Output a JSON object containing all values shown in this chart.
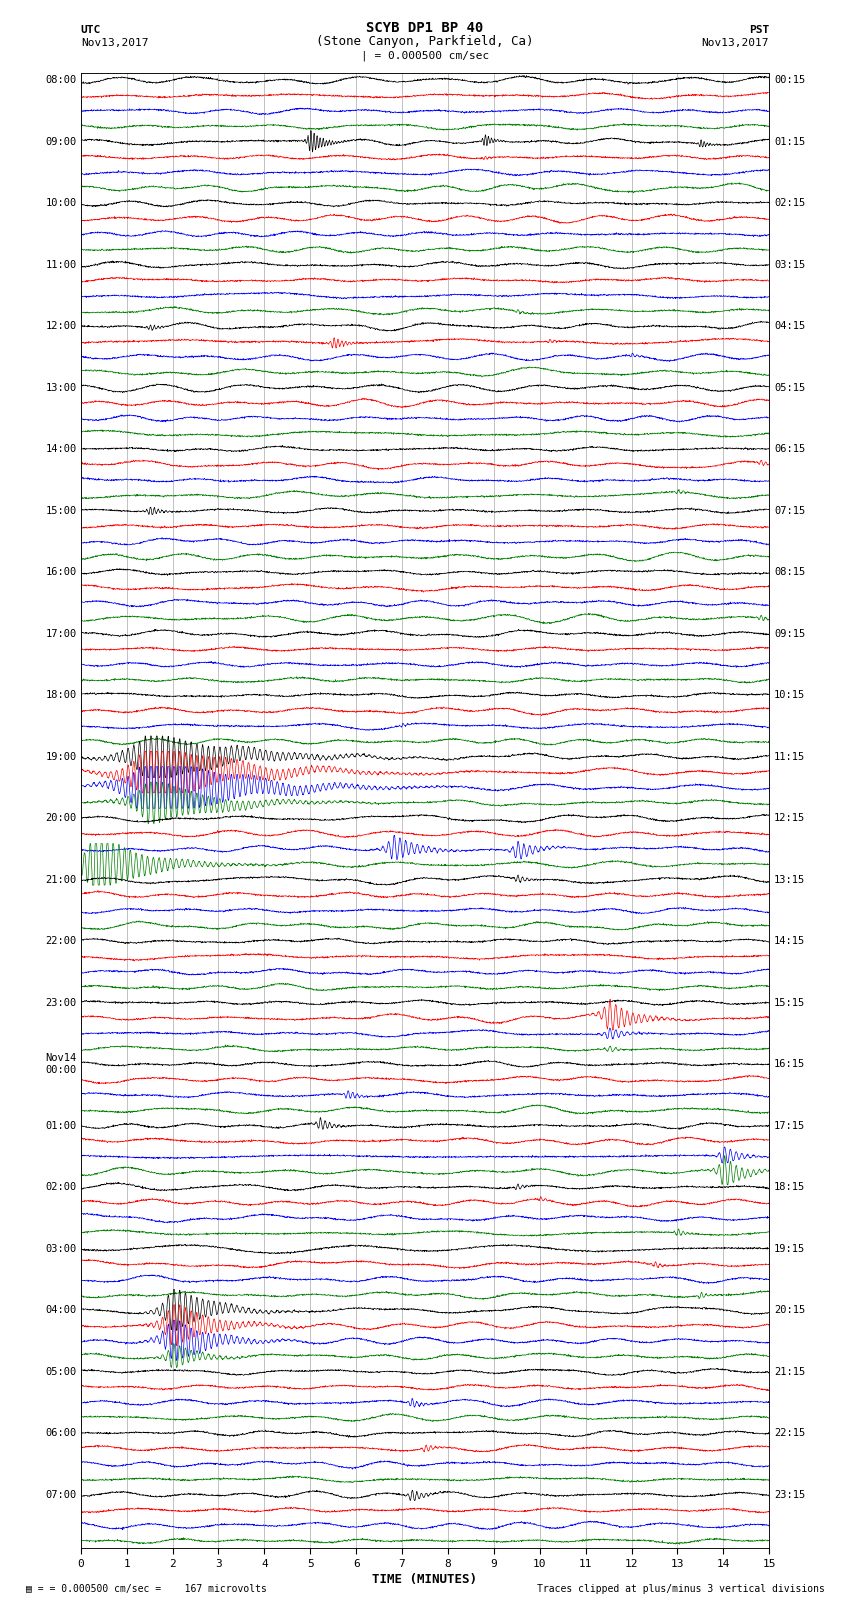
{
  "title_line1": "SCYB DP1 BP 40",
  "title_line2": "(Stone Canyon, Parkfield, Ca)",
  "scale_label": "| = 0.000500 cm/sec",
  "utc_label": "UTC",
  "pst_label": "PST",
  "date_left": "Nov13,2017",
  "date_right": "Nov13,2017",
  "xlabel": "TIME (MINUTES)",
  "footer_left": "= 0.000500 cm/sec =    167 microvolts",
  "footer_right": "Traces clipped at plus/minus 3 vertical divisions",
  "bg_color": "#ffffff",
  "trace_colors": [
    "black",
    "red",
    "blue",
    "green"
  ],
  "grid_color_v": "#aaaaaa",
  "xmin": 0,
  "xmax": 15,
  "xticks": [
    0,
    1,
    2,
    3,
    4,
    5,
    6,
    7,
    8,
    9,
    10,
    11,
    12,
    13,
    14,
    15
  ],
  "figwidth": 8.5,
  "figheight": 16.13,
  "dpi": 100,
  "num_hour_groups": 24,
  "traces_per_group": 4,
  "noise_scale": 0.18,
  "row_labels_left": [
    "08:00",
    "09:00",
    "10:00",
    "11:00",
    "12:00",
    "13:00",
    "14:00",
    "15:00",
    "16:00",
    "17:00",
    "18:00",
    "19:00",
    "20:00",
    "21:00",
    "22:00",
    "23:00",
    "Nov14\n00:00",
    "01:00",
    "02:00",
    "03:00",
    "04:00",
    "05:00",
    "06:00",
    "07:00"
  ],
  "row_labels_right": [
    "00:15",
    "01:15",
    "02:15",
    "03:15",
    "04:15",
    "05:15",
    "06:15",
    "07:15",
    "08:15",
    "09:15",
    "10:15",
    "11:15",
    "12:15",
    "13:15",
    "14:15",
    "15:15",
    "16:15",
    "17:15",
    "18:15",
    "19:15",
    "20:15",
    "21:15",
    "22:15",
    "23:15"
  ],
  "nov14_label": "Nov14",
  "nov14_group": 16,
  "events": [
    {
      "group": 1,
      "trace": 0,
      "minute": 5.0,
      "amp": 1.8,
      "dur": 0.4,
      "freq": 15
    },
    {
      "group": 1,
      "trace": 0,
      "minute": 8.8,
      "amp": 1.0,
      "dur": 0.25,
      "freq": 15
    },
    {
      "group": 1,
      "trace": 0,
      "minute": 13.5,
      "amp": 0.7,
      "dur": 0.2,
      "freq": 15
    },
    {
      "group": 1,
      "trace": 1,
      "minute": 8.8,
      "amp": 0.25,
      "dur": 0.15,
      "freq": 12
    },
    {
      "group": 3,
      "trace": 3,
      "minute": 9.5,
      "amp": 0.3,
      "dur": 0.2,
      "freq": 10
    },
    {
      "group": 4,
      "trace": 0,
      "minute": 1.5,
      "amp": 0.5,
      "dur": 0.25,
      "freq": 12
    },
    {
      "group": 4,
      "trace": 1,
      "minute": 5.5,
      "amp": 0.9,
      "dur": 0.35,
      "freq": 12
    },
    {
      "group": 4,
      "trace": 1,
      "minute": 10.2,
      "amp": 0.35,
      "dur": 0.2,
      "freq": 10
    },
    {
      "group": 4,
      "trace": 2,
      "minute": 12.0,
      "amp": 0.4,
      "dur": 0.2,
      "freq": 10
    },
    {
      "group": 6,
      "trace": 1,
      "minute": 14.8,
      "amp": 0.5,
      "dur": 0.2,
      "freq": 10
    },
    {
      "group": 6,
      "trace": 3,
      "minute": 13.0,
      "amp": 0.35,
      "dur": 0.2,
      "freq": 10
    },
    {
      "group": 7,
      "trace": 0,
      "minute": 1.5,
      "amp": 0.7,
      "dur": 0.35,
      "freq": 12
    },
    {
      "group": 8,
      "trace": 3,
      "minute": 14.8,
      "amp": 0.5,
      "dur": 0.25,
      "freq": 10
    },
    {
      "group": 10,
      "trace": 2,
      "minute": 7.0,
      "amp": 0.3,
      "dur": 0.2,
      "freq": 10
    },
    {
      "group": 11,
      "trace": 2,
      "minute": 1.5,
      "amp": 6.0,
      "dur": 2.5,
      "freq": 8,
      "clipped": true
    },
    {
      "group": 11,
      "trace": 1,
      "minute": 1.5,
      "amp": 5.0,
      "dur": 2.5,
      "freq": 8,
      "clipped": true
    },
    {
      "group": 11,
      "trace": 0,
      "minute": 1.5,
      "amp": 4.0,
      "dur": 2.5,
      "freq": 8,
      "clipped": true
    },
    {
      "group": 11,
      "trace": 3,
      "minute": 1.5,
      "amp": 3.5,
      "dur": 2.0,
      "freq": 8,
      "clipped": true
    },
    {
      "group": 12,
      "trace": 3,
      "minute": 0.3,
      "amp": 5.0,
      "dur": 1.5,
      "freq": 8,
      "clipped": true
    },
    {
      "group": 12,
      "trace": 2,
      "minute": 6.8,
      "amp": 2.0,
      "dur": 0.8,
      "freq": 8
    },
    {
      "group": 12,
      "trace": 2,
      "minute": 9.5,
      "amp": 1.5,
      "dur": 0.6,
      "freq": 8
    },
    {
      "group": 13,
      "trace": 0,
      "minute": 9.5,
      "amp": 0.6,
      "dur": 0.3,
      "freq": 10
    },
    {
      "group": 15,
      "trace": 1,
      "minute": 11.5,
      "amp": 2.5,
      "dur": 0.8,
      "freq": 8
    },
    {
      "group": 15,
      "trace": 2,
      "minute": 11.5,
      "amp": 1.0,
      "dur": 0.5,
      "freq": 8
    },
    {
      "group": 15,
      "trace": 3,
      "minute": 11.5,
      "amp": 0.5,
      "dur": 0.3,
      "freq": 8
    },
    {
      "group": 16,
      "trace": 2,
      "minute": 5.8,
      "amp": 0.7,
      "dur": 0.35,
      "freq": 10
    },
    {
      "group": 17,
      "trace": 0,
      "minute": 5.2,
      "amp": 1.0,
      "dur": 0.4,
      "freq": 10
    },
    {
      "group": 17,
      "trace": 3,
      "minute": 14.0,
      "amp": 2.5,
      "dur": 0.6,
      "freq": 8
    },
    {
      "group": 17,
      "trace": 2,
      "minute": 14.0,
      "amp": 1.5,
      "dur": 0.5,
      "freq": 8
    },
    {
      "group": 18,
      "trace": 0,
      "minute": 9.5,
      "amp": 0.5,
      "dur": 0.25,
      "freq": 10
    },
    {
      "group": 18,
      "trace": 1,
      "minute": 10.0,
      "amp": 0.4,
      "dur": 0.2,
      "freq": 10
    },
    {
      "group": 18,
      "trace": 3,
      "minute": 13.0,
      "amp": 0.6,
      "dur": 0.25,
      "freq": 10
    },
    {
      "group": 19,
      "trace": 1,
      "minute": 12.5,
      "amp": 0.5,
      "dur": 0.25,
      "freq": 10
    },
    {
      "group": 19,
      "trace": 3,
      "minute": 13.5,
      "amp": 0.5,
      "dur": 0.25,
      "freq": 10
    },
    {
      "group": 20,
      "trace": 0,
      "minute": 2.0,
      "amp": 3.5,
      "dur": 1.2,
      "freq": 8,
      "clipped": true
    },
    {
      "group": 20,
      "trace": 1,
      "minute": 2.0,
      "amp": 3.5,
      "dur": 1.2,
      "freq": 8,
      "clipped": true
    },
    {
      "group": 20,
      "trace": 2,
      "minute": 2.0,
      "amp": 3.5,
      "dur": 1.2,
      "freq": 8,
      "clipped": true
    },
    {
      "group": 20,
      "trace": 3,
      "minute": 2.0,
      "amp": 2.0,
      "dur": 0.8,
      "freq": 8
    },
    {
      "group": 21,
      "trace": 2,
      "minute": 7.2,
      "amp": 0.7,
      "dur": 0.3,
      "freq": 10
    },
    {
      "group": 22,
      "trace": 1,
      "minute": 7.5,
      "amp": 0.6,
      "dur": 0.3,
      "freq": 10
    },
    {
      "group": 23,
      "trace": 0,
      "minute": 7.2,
      "amp": 0.9,
      "dur": 0.4,
      "freq": 10
    }
  ]
}
